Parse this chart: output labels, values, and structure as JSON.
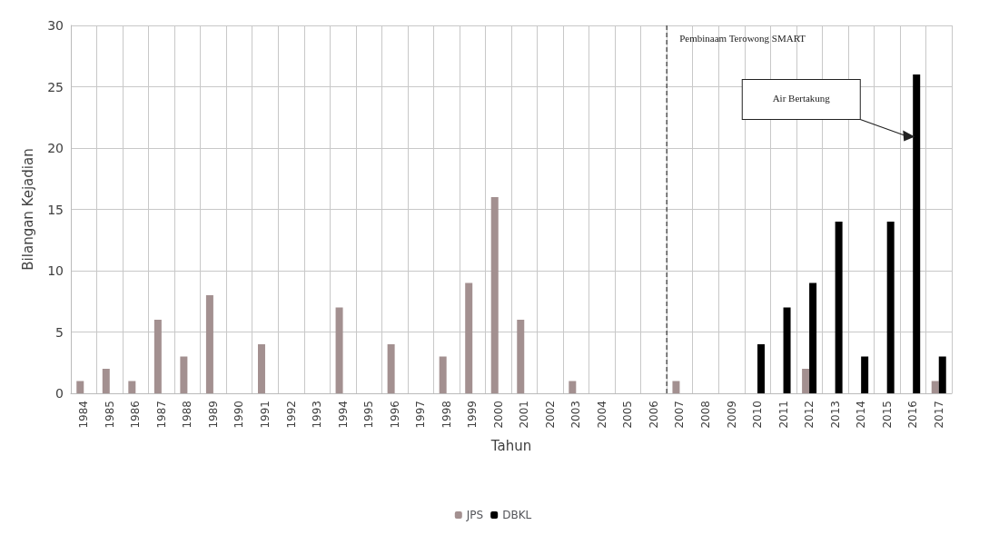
{
  "chart_data": {
    "type": "bar",
    "xlabel": "Tahun",
    "ylabel": "Bilangan Kejadian",
    "categories": [
      "1984",
      "1985",
      "1986",
      "1987",
      "1988",
      "1989",
      "1990",
      "1991",
      "1992",
      "1993",
      "1994",
      "1995",
      "1996",
      "1997",
      "1998",
      "1999",
      "2000",
      "2001",
      "2002",
      "2003",
      "2004",
      "2005",
      "2006",
      "2007",
      "2008",
      "2009",
      "2010",
      "2011",
      "2012",
      "2013",
      "2014",
      "2015",
      "2016",
      "2017"
    ],
    "series": [
      {
        "name": "JPS",
        "color": "#a39090",
        "values": [
          1,
          2,
          1,
          6,
          3,
          8,
          null,
          4,
          null,
          null,
          7,
          null,
          4,
          null,
          3,
          9,
          16,
          6,
          null,
          1,
          null,
          null,
          null,
          1,
          null,
          null,
          null,
          null,
          2,
          null,
          null,
          null,
          null,
          1
        ]
      },
      {
        "name": "DBKL",
        "color": "#000000",
        "values": [
          null,
          null,
          null,
          null,
          null,
          null,
          null,
          null,
          null,
          null,
          null,
          null,
          null,
          null,
          null,
          null,
          null,
          null,
          null,
          null,
          null,
          null,
          null,
          null,
          null,
          null,
          4,
          7,
          9,
          14,
          3,
          14,
          26,
          3
        ]
      }
    ],
    "ylim": [
      0,
      30
    ],
    "yticks": [
      0,
      5,
      10,
      15,
      20,
      25,
      30
    ],
    "grid": true,
    "legend": "bottom",
    "ref_lines": [
      {
        "axis": "x",
        "value": "2007",
        "label": "Pembinaam Terowong SMART",
        "line_style": "dashed"
      }
    ],
    "annotations": [
      "Air Bertakung"
    ]
  }
}
